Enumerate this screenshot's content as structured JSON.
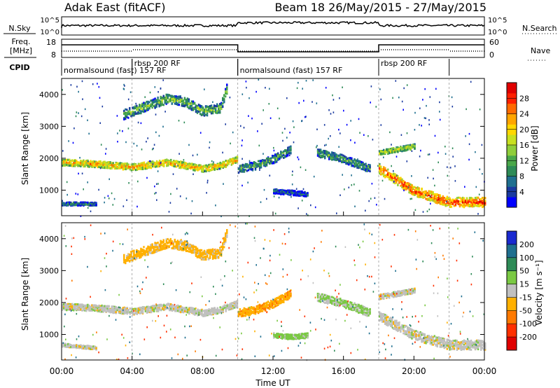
{
  "header": {
    "station": "Adak East (fitACF)",
    "beam_info": "Beam 18 26/May/2015 - 27/May/2015"
  },
  "top_panels": {
    "nsky_label": "N.Sky",
    "nsky_ticks": [
      "10^5",
      "10^0"
    ],
    "nsearch_label": "N.Search",
    "nsearch_ticks": [
      "10^5",
      "10^0"
    ],
    "freq_label": "Freq.",
    "freq_unit": "[MHz]",
    "freq_ticks": [
      "18",
      "8"
    ],
    "nave_label": "Nave",
    "nave_ticks": [
      "60",
      "0"
    ],
    "cpid_label": "CPID",
    "cpid_segments": [
      {
        "label": "normalsound (fast) 157 RF",
        "start_h": 0,
        "end_h": 4
      },
      {
        "label": "rbsp 200 RF",
        "start_h": 4,
        "end_h": 10
      },
      {
        "label": "normalsound (fast) 157 RF",
        "start_h": 10,
        "end_h": 18
      },
      {
        "label": "rbsp 200 RF",
        "start_h": 18,
        "end_h": 22
      }
    ]
  },
  "axes": {
    "ylabel": "Slant Range [km]",
    "yticks": [
      "4000",
      "3000",
      "2000",
      "1000"
    ],
    "xlabel": "Time UT",
    "xticks": [
      "00:00",
      "04:00",
      "08:00",
      "12:00",
      "16:00",
      "20:00",
      "00:00"
    ]
  },
  "colorbars": {
    "power": {
      "label": "Power [dB]",
      "ticks": [
        "28",
        "24",
        "20",
        "16",
        "12",
        "8",
        "4"
      ],
      "colors": [
        "#0000ff",
        "#1a3aa0",
        "#1f6f8f",
        "#2e8b57",
        "#4aa84a",
        "#8fce3a",
        "#c8e020",
        "#ffd700",
        "#ffa500",
        "#ff6a00",
        "#ff2000",
        "#e00000"
      ]
    },
    "velocity": {
      "label": "Velocity [m s⁻¹]",
      "ticks": [
        "200",
        "100",
        "50",
        "15",
        "-15",
        "-50",
        "-100",
        "-200"
      ],
      "colors": [
        "#1a2ad0",
        "#1f6f8f",
        "#2e8b57",
        "#7ac943",
        "#c0c0c0",
        "#ffb000",
        "#ff7a00",
        "#ff3000",
        "#e00000"
      ]
    }
  },
  "chart_data": {
    "type": "heatmap",
    "x_range_hours": [
      0,
      24
    ],
    "y_range_km": [
      200,
      4500
    ],
    "grid": false,
    "power_bands": [
      {
        "t": [
          0,
          2,
          4,
          6,
          8,
          9,
          10
        ],
        "range_km": [
          1900,
          1850,
          1750,
          1900,
          1700,
          1800,
          2000
        ],
        "width_km": 200,
        "power_db": 22
      },
      {
        "t": [
          3.5,
          5,
          6,
          7,
          8,
          9,
          9.4
        ],
        "range_km": [
          3400,
          3700,
          3900,
          3800,
          3500,
          3600,
          4300
        ],
        "width_km": 300,
        "power_db": 14
      },
      {
        "t": [
          0,
          1,
          2
        ],
        "range_km": [
          600,
          600,
          600
        ],
        "width_km": 100,
        "power_db": 10
      },
      {
        "t": [
          10,
          11,
          12,
          13
        ],
        "range_km": [
          1700,
          1800,
          2000,
          2300
        ],
        "width_km": 250,
        "power_db": 12
      },
      {
        "t": [
          12,
          13,
          14
        ],
        "range_km": [
          1000,
          950,
          900
        ],
        "width_km": 150,
        "power_db": 8
      },
      {
        "t": [
          14.5,
          16,
          17.5
        ],
        "range_km": [
          2200,
          2000,
          1700
        ],
        "width_km": 250,
        "power_db": 12
      },
      {
        "t": [
          18,
          19,
          20
        ],
        "range_km": [
          2200,
          2300,
          2400
        ],
        "width_km": 150,
        "power_db": 18
      },
      {
        "t": [
          18,
          20,
          22,
          24
        ],
        "range_km": [
          1700,
          1000,
          650,
          650
        ],
        "width_km": 300,
        "power_db": 26
      }
    ],
    "velocity_bands": [
      {
        "t": [
          0,
          2,
          4,
          6,
          8,
          9,
          10
        ],
        "range_km": [
          1900,
          1850,
          1750,
          1900,
          1700,
          1800,
          2000
        ],
        "width_km": 200,
        "velocity": 0
      },
      {
        "t": [
          3.5,
          5,
          6,
          7,
          8,
          9,
          9.4
        ],
        "range_km": [
          3400,
          3700,
          3900,
          3800,
          3500,
          3600,
          4300
        ],
        "width_km": 300,
        "velocity": -30
      },
      {
        "t": [
          0,
          1,
          2
        ],
        "range_km": [
          700,
          650,
          600
        ],
        "width_km": 100,
        "velocity": 0
      },
      {
        "t": [
          10,
          11,
          12,
          13
        ],
        "range_km": [
          1700,
          1800,
          2000,
          2300
        ],
        "width_km": 250,
        "velocity": -40
      },
      {
        "t": [
          12,
          13,
          14
        ],
        "range_km": [
          1000,
          950,
          1000
        ],
        "width_km": 150,
        "velocity": 30
      },
      {
        "t": [
          14.5,
          16,
          17.5
        ],
        "range_km": [
          2200,
          2000,
          1700
        ],
        "width_km": 250,
        "velocity": 20
      },
      {
        "t": [
          18,
          19,
          20
        ],
        "range_km": [
          2200,
          2300,
          2400
        ],
        "width_km": 150,
        "velocity": 0
      },
      {
        "t": [
          18,
          20,
          22,
          24
        ],
        "range_km": [
          1600,
          1000,
          700,
          700
        ],
        "width_km": 300,
        "velocity": 0
      }
    ]
  }
}
